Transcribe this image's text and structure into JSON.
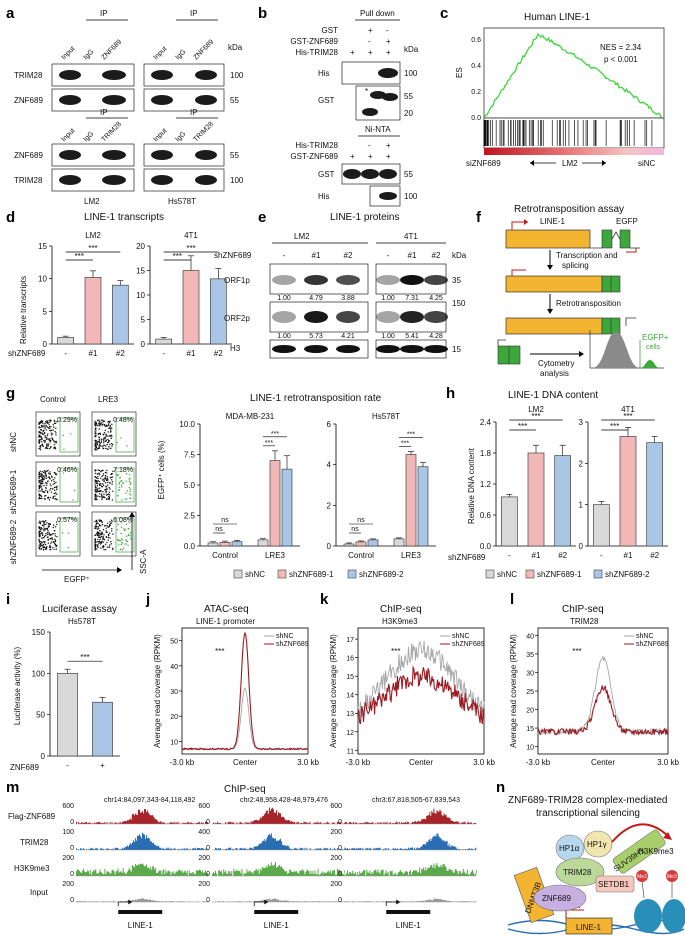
{
  "panels": {
    "a": "a",
    "b": "b",
    "c": "c",
    "d": "d",
    "e": "e",
    "f": "f",
    "g": "g",
    "h": "h",
    "i": "i",
    "j": "j",
    "k": "k",
    "l": "l",
    "m": "m",
    "n": "n"
  },
  "a": {
    "ip": "IP",
    "kda": "kDa",
    "lanes_top": [
      "Input",
      "IgG",
      "ZNF689"
    ],
    "lanes_bottom": [
      "Input",
      "IgG",
      "TRIM28"
    ],
    "rows_top": [
      "TRIM28",
      "ZNF689"
    ],
    "rows_bottom": [
      "ZNF689",
      "TRIM28"
    ],
    "mw_top": [
      "100",
      "55"
    ],
    "mw_bottom": [
      "55",
      "100"
    ],
    "cells": [
      "LM2",
      "Hs578T"
    ]
  },
  "b": {
    "pulldown": "Pull down",
    "ninta": "Ni-NTA",
    "kda": "kDa",
    "rows_top": [
      "GST",
      "GST-ZNF689",
      "His-TRIM28"
    ],
    "signs_top": [
      [
        "",
        "+",
        "-"
      ],
      [
        "",
        "-",
        "+"
      ],
      [
        "+",
        "+",
        "+"
      ]
    ],
    "blot_top": [
      "His",
      "GST"
    ],
    "mw_top": [
      "100",
      "55",
      "20"
    ],
    "star": "*",
    "rows_bottom": [
      "His-TRIM28",
      "GST-ZNF689"
    ],
    "signs_bottom": [
      [
        "",
        "-",
        "+"
      ],
      [
        "+",
        "+",
        "+"
      ]
    ],
    "blot_bottom": [
      "GST",
      "His"
    ],
    "mw_bottom": [
      "55",
      "100"
    ]
  },
  "c": {
    "title": "Human LINE-1",
    "ylabel": "ES",
    "nes": "NES = 2.34",
    "p": "p < 0.001",
    "left": "siZNF689",
    "mid": "LM2",
    "right": "siNC",
    "yticks": [
      "0.6",
      "0.4",
      "0.2",
      "0.0"
    ]
  },
  "d": {
    "title": "LINE-1 transcripts",
    "ylabel": "Relative transcripts",
    "xlabel": "shZNF689",
    "sig": "***",
    "charts": [
      {
        "name": "LM2",
        "categories": [
          "-",
          "#1",
          "#2"
        ],
        "values": [
          1.0,
          10.2,
          9.0
        ],
        "err": [
          0.2,
          1.0,
          0.7
        ],
        "yticks": [
          "0",
          "5",
          "10",
          "15"
        ],
        "ylim": [
          0,
          15
        ]
      },
      {
        "name": "4T1",
        "categories": [
          "-",
          "#1",
          "#2"
        ],
        "values": [
          1.0,
          15.0,
          13.3
        ],
        "err": [
          0.3,
          3.0,
          2.1
        ],
        "yticks": [
          "0",
          "5",
          "10",
          "15",
          "20"
        ],
        "ylim": [
          0,
          20
        ]
      }
    ]
  },
  "e": {
    "title": "LINE-1 proteins",
    "row": "shZNF689",
    "kda": "kDa",
    "cells": [
      "LM2",
      "4T1"
    ],
    "lanes": [
      "-",
      "#1",
      "#2",
      "-",
      "#1",
      "#2"
    ],
    "rows": [
      "ORF1p",
      "ORF2p",
      "H3"
    ],
    "q1": [
      "1.00",
      "4.79",
      "3.88",
      "1.00",
      "7.31",
      "4.25"
    ],
    "q2": [
      "1.00",
      "5.73",
      "4.21",
      "1.00",
      "5.41",
      "4.28"
    ],
    "mw": [
      "35",
      "150",
      "15"
    ]
  },
  "f": {
    "title": "Retrotransposition assay",
    "line1": "LINE-1",
    "egfp": "EGFP",
    "step1": "Transcription and",
    "step1b": "splicing",
    "step2": "Retrotransposition",
    "step3": "Cytometry",
    "step3b": "analysis",
    "cells": "EGFP+",
    "cellsb": "cells"
  },
  "g": {
    "cols": [
      "Control",
      "LRE3"
    ],
    "rows": [
      "shNC",
      "shZNF689-1",
      "shZNF689-2"
    ],
    "pcts": [
      [
        "0.29%",
        "0.48%"
      ],
      [
        "0.46%",
        "7.18%"
      ],
      [
        "0.57%",
        "6.08%"
      ]
    ],
    "xaxis": "EGFP⁺",
    "yaxis": "SSC-A",
    "title": "LINE-1 retrotransposition rate",
    "ylabel": "EGFP⁺ cells (%)",
    "ns": "ns",
    "sig": "***",
    "legend": [
      "shNC",
      "shZNF689-1",
      "shZNF689-2"
    ],
    "charts": [
      {
        "name": "MDA-MB-231",
        "categories": [
          "Control",
          "LRE3"
        ],
        "series": [
          {
            "name": "shNC",
            "values": [
              0.25,
              0.5
            ]
          },
          {
            "name": "shZNF689-1",
            "values": [
              0.3,
              7.0
            ]
          },
          {
            "name": "shZNF689-2",
            "values": [
              0.35,
              6.3
            ]
          }
        ],
        "err": [
          [
            0.1,
            0.1
          ],
          [
            0.1,
            0.8
          ],
          [
            0.1,
            1.1
          ]
        ],
        "yticks": [
          "0.0",
          "2.5",
          "5.0",
          "7.5",
          "10.0"
        ],
        "ylim": [
          0,
          10
        ]
      },
      {
        "name": "Hs578T",
        "categories": [
          "Control",
          "LRE3"
        ],
        "series": [
          {
            "name": "shNC",
            "values": [
              0.1,
              0.35
            ]
          },
          {
            "name": "shZNF689-1",
            "values": [
              0.2,
              4.5
            ]
          },
          {
            "name": "shZNF689-2",
            "values": [
              0.3,
              3.9
            ]
          }
        ],
        "err": [
          [
            0.05,
            0.05
          ],
          [
            0.05,
            0.15
          ],
          [
            0.05,
            0.2
          ]
        ],
        "yticks": [
          "0",
          "2",
          "4",
          "6"
        ],
        "ylim": [
          0,
          6
        ]
      }
    ]
  },
  "h": {
    "title": "LINE-1 DNA content",
    "ylabel": "Relative DNA content",
    "xlabel": "shZNF689",
    "sig": "***",
    "legend": [
      "shNC",
      "shZNF689-1",
      "shZNF689-2"
    ],
    "charts": [
      {
        "name": "LM2",
        "categories": [
          "-",
          "#1",
          "#2"
        ],
        "values": [
          0.95,
          1.8,
          1.75
        ],
        "err": [
          0.05,
          0.15,
          0.2
        ],
        "yticks": [
          "0.0",
          "0.6",
          "1.2",
          "1.8",
          "2.4"
        ],
        "ylim": [
          0,
          2.4
        ]
      },
      {
        "name": "4T1",
        "categories": [
          "-",
          "#1",
          "#2"
        ],
        "values": [
          1.0,
          2.65,
          2.5
        ],
        "err": [
          0.08,
          0.22,
          0.15
        ],
        "yticks": [
          "0",
          "1",
          "2",
          "3"
        ],
        "ylim": [
          0,
          3
        ]
      }
    ]
  },
  "i": {
    "title": "Luciferase assay",
    "subtitle": "Hs578T",
    "ylabel": "Luciferase activity (%)",
    "xlabel": "ZNF689",
    "categories": [
      "-",
      "+"
    ],
    "values": [
      100,
      65
    ],
    "err": [
      5,
      6
    ],
    "yticks": [
      "0",
      "50",
      "100",
      "150"
    ],
    "ylim": [
      0,
      150
    ],
    "sig": "***"
  },
  "profiles": {
    "ylabel": "Average read coverage (RPKM)",
    "left": "-3.0 kb",
    "center": "Center",
    "right": "3.0 kb",
    "legend": [
      "shNC",
      "shZNF689"
    ],
    "sig": "***",
    "j": {
      "title": "ATAC-seq",
      "subtitle": "LINE-1 promoter",
      "yticks": [
        "10",
        "20",
        "30",
        "40",
        "50"
      ],
      "ylim": [
        5,
        55
      ],
      "bg": 7,
      "peakNC": 31,
      "peakKD": 53,
      "width": 0.06,
      "noise": 0.3
    },
    "k": {
      "title": "ChIP-seq",
      "subtitle": "H3K9me3",
      "yticks": [
        "11",
        "12",
        "13",
        "14",
        "15",
        "16",
        "17"
      ],
      "ylim": [
        10.8,
        17.6
      ],
      "bg": 12.4,
      "peakNC": 16.4,
      "peakKD": 15.0,
      "width": 0.55,
      "noise": 0.55
    },
    "l": {
      "title": "ChIP-seq",
      "subtitle": "TRIM28",
      "yticks": [
        "10",
        "15",
        "20",
        "25",
        "30",
        "35",
        "40"
      ],
      "ylim": [
        8,
        42
      ],
      "bg": 14,
      "peakNC": 34,
      "peakKD": 26,
      "width": 0.12,
      "noise": 0.8
    }
  },
  "m": {
    "title": "ChIP-seq",
    "loci": [
      "chr14:84,097,343-84,118,492",
      "chr2:48,958,428-48,979,476",
      "chr3:67,818,505-67,839,543"
    ],
    "tracks": [
      "Flag-ZNF689",
      "TRIM28",
      "H3K9me3",
      "Input"
    ],
    "scales": [
      [
        "600",
        "100",
        "200",
        "200"
      ],
      [
        "600",
        "400",
        "200",
        "200"
      ],
      [
        "600",
        "200",
        "200",
        "200"
      ]
    ],
    "zero": "0",
    "gene": "LINE-1",
    "colors": [
      "#a8242b",
      "#2a6db3",
      "#5aa94a",
      "#9a9a9a"
    ]
  },
  "n": {
    "title": "ZNF689-TRIM28 complex-mediated",
    "title2": "transcriptional silencing",
    "labels": {
      "dnmt": "DNMT3B",
      "hp1a": "HP1α",
      "hp1g": "HP1γ",
      "suv": "SUV39H1",
      "trim": "TRIM28",
      "setdb": "SETDB1",
      "znf": "ZNF689",
      "line": "LINE-1",
      "mark": "H3K9me3",
      "me": "Me3"
    }
  },
  "colors": {
    "nc": "#d9d9d9",
    "kd1": "#f2b8b8",
    "kd2": "#a9c6e6",
    "kdLine": "#9b1a22",
    "ncLine": "#a6a6a6",
    "gsea": "#3ed63e"
  }
}
